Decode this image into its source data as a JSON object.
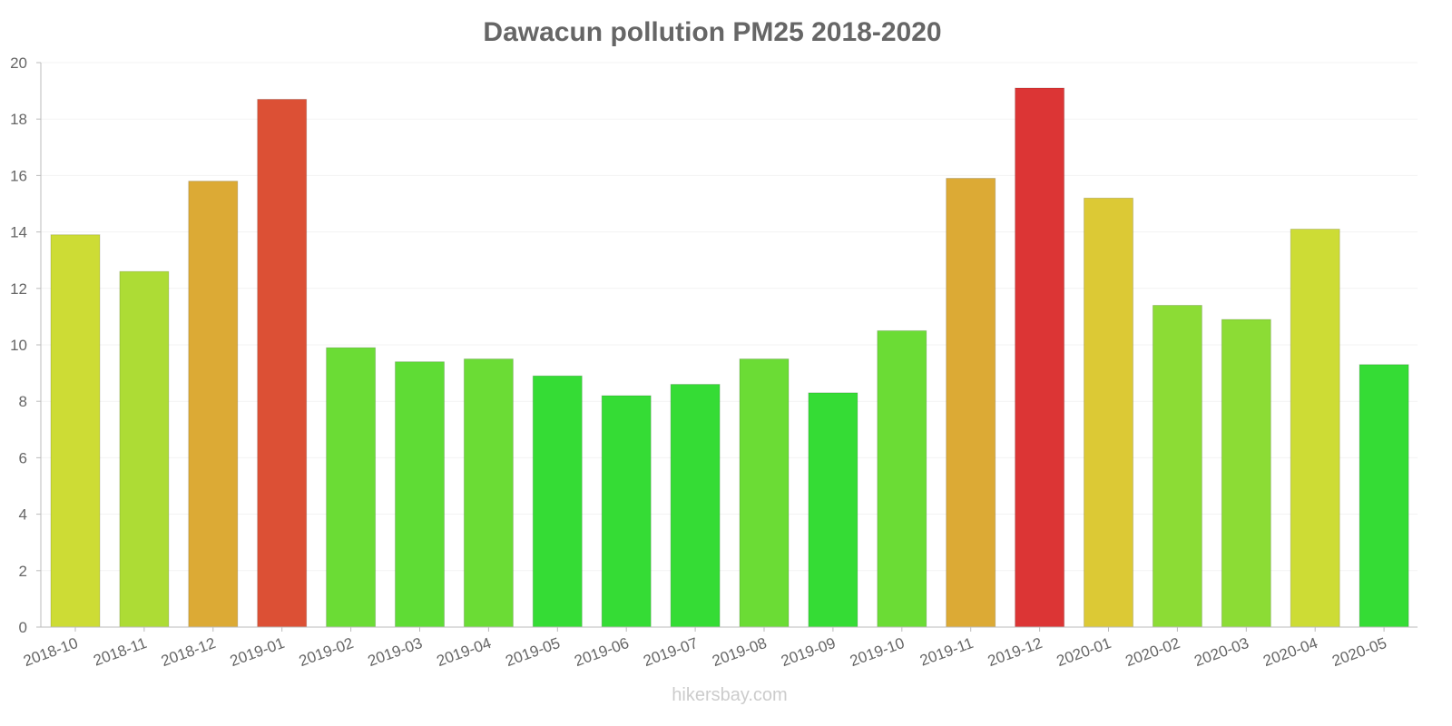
{
  "chart_data": {
    "type": "bar",
    "title": "Dawacun pollution PM25 2018-2020",
    "xlabel": "",
    "ylabel": "",
    "ylim": [
      0,
      20
    ],
    "yticks": [
      0,
      2,
      4,
      6,
      8,
      10,
      12,
      14,
      16,
      18,
      20
    ],
    "grid": true,
    "categories": [
      "2018-10",
      "2018-11",
      "2018-12",
      "2019-01",
      "2019-02",
      "2019-03",
      "2019-04",
      "2019-05",
      "2019-06",
      "2019-07",
      "2019-08",
      "2019-09",
      "2019-10",
      "2019-11",
      "2019-12",
      "2020-01",
      "2020-02",
      "2020-03",
      "2020-04",
      "2020-05"
    ],
    "values": [
      13.9,
      12.6,
      15.8,
      18.7,
      9.9,
      9.4,
      9.5,
      8.9,
      8.2,
      8.6,
      9.5,
      8.3,
      10.5,
      15.9,
      19.1,
      15.2,
      11.4,
      10.9,
      14.1,
      9.3
    ],
    "colors": [
      "#cddc35",
      "#addc35",
      "#dcaa35",
      "#dc5035",
      "#6bdc35",
      "#5fdc35",
      "#6bdc35",
      "#35dc35",
      "#35dc35",
      "#35dc35",
      "#6bdc35",
      "#35dc35",
      "#6bdc35",
      "#dcaa35",
      "#dc3535",
      "#dcc935",
      "#8cdc35",
      "#8cdc35",
      "#cddc35",
      "#35dc35"
    ]
  },
  "watermark": "hikersbay.com"
}
